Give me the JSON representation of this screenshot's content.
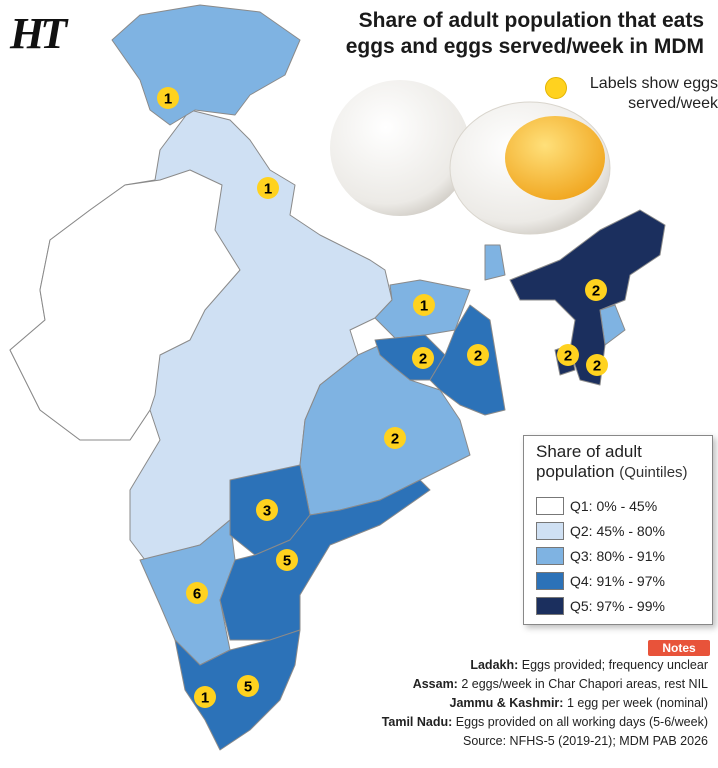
{
  "brand": {
    "logo": "HT"
  },
  "title": "Share of adult population that eats eggs and eggs served/week in MDM",
  "label_note": "Labels show eggs served/week",
  "colors": {
    "Q1": "#ffffff",
    "Q2": "#cfe0f3",
    "Q3": "#7fb3e2",
    "Q4": "#2c72b8",
    "Q5": "#1b2f5e",
    "border": "#8a8a8a",
    "label": "#ffd21f"
  },
  "legend": {
    "title": "Share of adult population",
    "subtitle": "(Quintiles)",
    "items": [
      {
        "label": "Q1: 0% - 45%",
        "color": "#ffffff"
      },
      {
        "label": "Q2: 45% - 80%",
        "color": "#cfe0f3"
      },
      {
        "label": "Q3: 80% - 91%",
        "color": "#7fb3e2"
      },
      {
        "label": "Q4: 91% - 97%",
        "color": "#2c72b8"
      },
      {
        "label": "Q5: 97% - 99%",
        "color": "#1b2f5e"
      }
    ]
  },
  "egg_labels": [
    "1",
    "1",
    "1",
    "2",
    "2",
    "2",
    "2",
    "2",
    "3",
    "5",
    "6",
    "1",
    "5"
  ],
  "notes": {
    "tag": "Notes",
    "lines": [
      {
        "key": "Ladakh:",
        "text": "Eggs provided; frequency unclear"
      },
      {
        "key": "Assam:",
        "text": "2 eggs/week in Char Chapori areas, rest NIL"
      },
      {
        "key": "Jammu & Kashmir:",
        "text": "1 egg per week (nominal)"
      },
      {
        "key": "Tamil Nadu:",
        "text": "Eggs provided on all working days (5-6/week)"
      }
    ],
    "source": "Source: NFHS-5 (2019-21); MDM PAB 2026"
  }
}
